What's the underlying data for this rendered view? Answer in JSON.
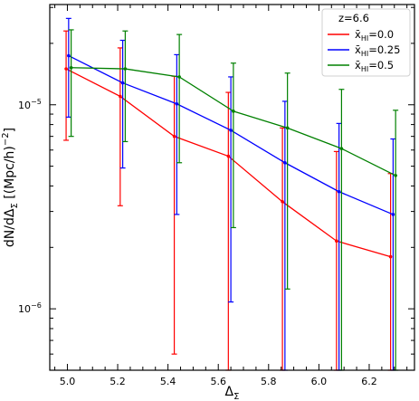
{
  "chart_data": {
    "type": "line",
    "xlabel": "Δ",
    "xlabel_sub": "Σ",
    "ylabel": "dN/dΔ",
    "ylabel_sub": "Σ",
    "ylabel_units": " [(Mpc/h)",
    "ylabel_units_exp": "−2",
    "ylabel_units_close": "]",
    "xlim": [
      4.93,
      6.38
    ],
    "ylim": [
      5e-07,
      3.1e-05
    ],
    "yscale": "log",
    "grid": false,
    "legend_position": "top-right",
    "legend_title": "z=6.6",
    "x_ticks": [
      {
        "value": 5.0,
        "label": "5.0"
      },
      {
        "value": 5.2,
        "label": "5.2"
      },
      {
        "value": 5.4,
        "label": "5.4"
      },
      {
        "value": 5.6,
        "label": "5.6"
      },
      {
        "value": 5.8,
        "label": "5.8"
      },
      {
        "value": 6.0,
        "label": "6.0"
      },
      {
        "value": 6.2,
        "label": "6.2"
      }
    ],
    "y_ticks": [
      {
        "value": 1e-05,
        "base": "10",
        "exp": "−5"
      },
      {
        "value": 1e-06,
        "base": "10",
        "exp": "−6"
      }
    ],
    "series": [
      {
        "name_base": "x̄",
        "name_sub": "HI",
        "name_rest": "=0.0",
        "color": "#ff0000",
        "x": [
          4.995,
          5.21,
          5.425,
          5.64,
          5.855,
          6.07,
          6.285
        ],
        "y": [
          1.5e-05,
          1.1e-05,
          7e-06,
          5.6e-06,
          3.35e-06,
          2.15e-06,
          1.8e-06
        ],
        "err_low": [
          6.7e-06,
          3.2e-06,
          6e-07,
          5e-07,
          5e-07,
          5e-07,
          5e-07
        ],
        "err_high": [
          2.3e-05,
          1.9e-05,
          1.38e-05,
          1.15e-05,
          7.7e-06,
          5.9e-06,
          4.6e-06
        ]
      },
      {
        "name_base": "x̄",
        "name_sub": "HI",
        "name_rest": "=0.25",
        "color": "#0000ff",
        "x": [
          5.005,
          5.22,
          5.435,
          5.65,
          5.865,
          6.08,
          6.295
        ],
        "y": [
          1.74e-05,
          1.28e-05,
          1.01e-05,
          7.5e-06,
          5.2e-06,
          3.75e-06,
          2.9e-06
        ],
        "err_low": [
          8.7e-06,
          4.9e-06,
          2.9e-06,
          1.08e-06,
          5e-07,
          5e-07,
          5e-07
        ],
        "err_high": [
          2.65e-05,
          2.07e-05,
          1.76e-05,
          1.37e-05,
          1.04e-05,
          8.1e-06,
          6.8e-06
        ]
      },
      {
        "name_base": "x̄",
        "name_sub": "HI",
        "name_rest": "=0.5",
        "color": "#008000",
        "x": [
          5.015,
          5.23,
          5.445,
          5.66,
          5.875,
          6.09,
          6.305
        ],
        "y": [
          1.52e-05,
          1.5e-05,
          1.37e-05,
          9.3e-06,
          7.7e-06,
          6.1e-06,
          4.5e-06
        ],
        "err_low": [
          7e-06,
          6.6e-06,
          5.2e-06,
          2.5e-06,
          1.25e-06,
          5e-07,
          5e-07
        ],
        "err_high": [
          2.33e-05,
          2.3e-05,
          2.21e-05,
          1.6e-05,
          1.43e-05,
          1.19e-05,
          9.4e-06
        ]
      }
    ]
  }
}
